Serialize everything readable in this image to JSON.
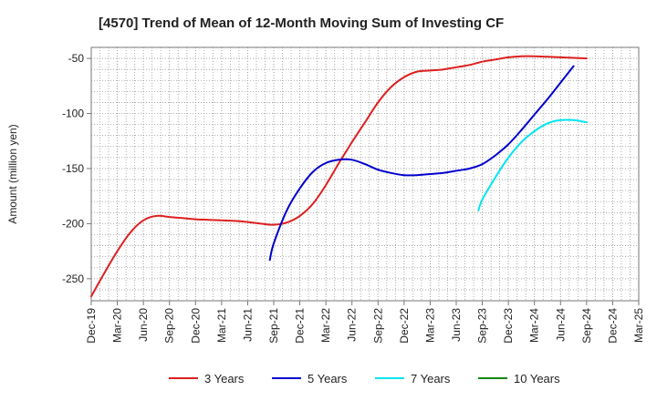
{
  "chart_data": {
    "type": "line",
    "title": "[4570]  Trend of Mean of 12-Month Moving Sum of Investing CF",
    "ylabel": "Amount (million yen)",
    "xlabel": "",
    "ylim": [
      -270,
      -40
    ],
    "yticks": [
      -50,
      -100,
      -150,
      -200,
      -250
    ],
    "grid": true,
    "legend_position": "bottom",
    "x_categories": [
      "Dec-19",
      "Mar-20",
      "Jun-20",
      "Sep-20",
      "Dec-20",
      "Mar-21",
      "Jun-21",
      "Sep-21",
      "Dec-21",
      "Mar-22",
      "Jun-22",
      "Sep-22",
      "Dec-22",
      "Mar-23",
      "Jun-23",
      "Sep-23",
      "Dec-23",
      "Mar-24",
      "Jun-24",
      "Sep-24",
      "Dec-24",
      "Mar-25"
    ],
    "series": [
      {
        "name": "3 Years",
        "color": "#dd1f1f",
        "points": [
          [
            0,
            -266
          ],
          [
            0.5,
            -245
          ],
          [
            1,
            -225
          ],
          [
            1.5,
            -208
          ],
          [
            2,
            -197
          ],
          [
            2.5,
            -193
          ],
          [
            3,
            -194
          ],
          [
            3.5,
            -195
          ],
          [
            4,
            -196
          ],
          [
            4.5,
            -196.5
          ],
          [
            5,
            -197
          ],
          [
            5.5,
            -197.5
          ],
          [
            6,
            -198.5
          ],
          [
            6.5,
            -200
          ],
          [
            7,
            -201
          ],
          [
            7.5,
            -199
          ],
          [
            8,
            -193
          ],
          [
            8.5,
            -182
          ],
          [
            9,
            -165
          ],
          [
            9.5,
            -145
          ],
          [
            10,
            -126
          ],
          [
            10.5,
            -108
          ],
          [
            11,
            -90
          ],
          [
            11.5,
            -76
          ],
          [
            12,
            -67
          ],
          [
            12.5,
            -62
          ],
          [
            13,
            -61
          ],
          [
            13.5,
            -60
          ],
          [
            14,
            -58
          ],
          [
            14.5,
            -56
          ],
          [
            15,
            -53
          ],
          [
            15.5,
            -51
          ],
          [
            16,
            -49
          ],
          [
            16.5,
            -48
          ],
          [
            17,
            -48
          ],
          [
            17.5,
            -48.5
          ],
          [
            18,
            -49
          ],
          [
            18.5,
            -49.5
          ],
          [
            19,
            -50
          ]
        ]
      },
      {
        "name": "5 Years",
        "color": "#0000cc",
        "points": [
          [
            6.85,
            -233
          ],
          [
            7,
            -218
          ],
          [
            7.5,
            -188
          ],
          [
            8,
            -168
          ],
          [
            8.5,
            -153
          ],
          [
            9,
            -145
          ],
          [
            9.5,
            -142
          ],
          [
            10,
            -142
          ],
          [
            10.5,
            -146
          ],
          [
            11,
            -151
          ],
          [
            11.5,
            -154
          ],
          [
            12,
            -156
          ],
          [
            12.5,
            -156
          ],
          [
            13,
            -155
          ],
          [
            13.5,
            -154
          ],
          [
            14,
            -152
          ],
          [
            14.5,
            -150
          ],
          [
            15,
            -146
          ],
          [
            15.5,
            -138
          ],
          [
            16,
            -128
          ],
          [
            16.5,
            -115
          ],
          [
            17,
            -101
          ],
          [
            17.5,
            -87
          ],
          [
            18,
            -72
          ],
          [
            18.5,
            -57
          ]
        ]
      },
      {
        "name": "7 Years",
        "color": "#00e5ee",
        "points": [
          [
            14.85,
            -188
          ],
          [
            15,
            -178
          ],
          [
            15.5,
            -158
          ],
          [
            16,
            -140
          ],
          [
            16.5,
            -126
          ],
          [
            17,
            -116
          ],
          [
            17.5,
            -109
          ],
          [
            18,
            -106
          ],
          [
            18.5,
            -106
          ],
          [
            19,
            -108
          ]
        ]
      },
      {
        "name": "10 Years",
        "color": "#118811",
        "points": []
      }
    ]
  }
}
